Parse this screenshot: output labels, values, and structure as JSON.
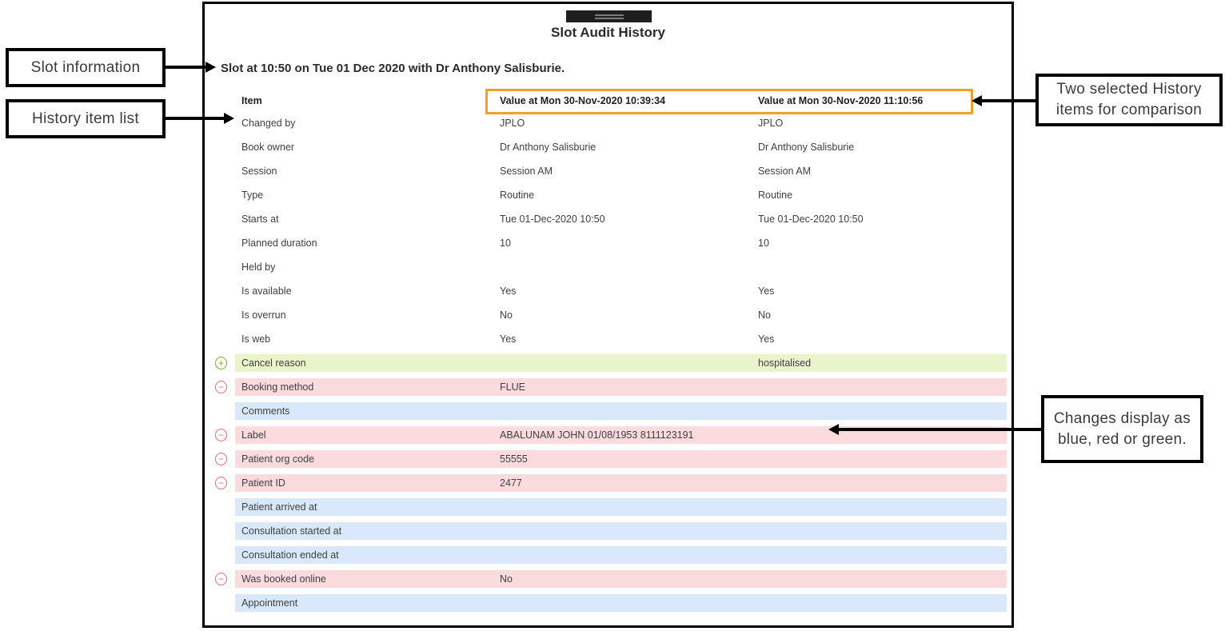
{
  "panel": {
    "title": "Slot Audit History",
    "subtitle": "Slot at 10:50 on Tue 01 Dec 2020 with Dr Anthony Salisburie."
  },
  "table": {
    "columns": [
      "Item",
      "Value at Mon 30-Nov-2020 10:39:34",
      "Value at Mon 30-Nov-2020 11:10:56"
    ],
    "rows": [
      {
        "item": "Changed by",
        "v1": "JPLO",
        "v2": "JPLO",
        "status": "none"
      },
      {
        "item": "Book owner",
        "v1": "Dr Anthony Salisburie",
        "v2": "Dr Anthony Salisburie",
        "status": "none"
      },
      {
        "item": "Session",
        "v1": "Session AM",
        "v2": "Session AM",
        "status": "none"
      },
      {
        "item": "Type",
        "v1": "Routine",
        "v2": "Routine",
        "status": "none"
      },
      {
        "item": "Starts at",
        "v1": "Tue 01-Dec-2020 10:50",
        "v2": "Tue 01-Dec-2020 10:50",
        "status": "none"
      },
      {
        "item": "Planned duration",
        "v1": "10",
        "v2": "10",
        "status": "none"
      },
      {
        "item": "Held by",
        "v1": "",
        "v2": "",
        "status": "none"
      },
      {
        "item": "Is available",
        "v1": "Yes",
        "v2": "Yes",
        "status": "none"
      },
      {
        "item": "Is overrun",
        "v1": "No",
        "v2": "No",
        "status": "none"
      },
      {
        "item": "Is web",
        "v1": "Yes",
        "v2": "Yes",
        "status": "none"
      },
      {
        "item": "Cancel reason",
        "v1": "",
        "v2": "hospitalised",
        "status": "added"
      },
      {
        "item": "Booking method",
        "v1": "FLUE",
        "v2": "",
        "status": "removed"
      },
      {
        "item": "Comments",
        "v1": "",
        "v2": "",
        "status": "changed"
      },
      {
        "item": "Label",
        "v1": "ABALUNAM JOHN 01/08/1953 8111123191",
        "v2": "",
        "status": "removed"
      },
      {
        "item": "Patient org code",
        "v1": "55555",
        "v2": "",
        "status": "removed"
      },
      {
        "item": "Patient ID",
        "v1": "2477",
        "v2": "",
        "status": "removed"
      },
      {
        "item": "Patient arrived at",
        "v1": "",
        "v2": "",
        "status": "changed"
      },
      {
        "item": "Consultation started at",
        "v1": "",
        "v2": "",
        "status": "changed"
      },
      {
        "item": "Consultation ended at",
        "v1": "",
        "v2": "",
        "status": "changed"
      },
      {
        "item": "Was booked online",
        "v1": "No",
        "v2": "",
        "status": "removed"
      },
      {
        "item": "Appointment",
        "v1": "",
        "v2": "",
        "status": "changed"
      }
    ]
  },
  "callouts": {
    "slot_info": "Slot information",
    "history_list": "History item list",
    "comparison": "Two selected History items for comparison",
    "changes": "Changes display as blue, red or green."
  },
  "colors": {
    "added_bg": "#e9f4ca",
    "removed_bg": "#fbdbde",
    "changed_bg": "#d9e9fb",
    "added_icon": "#74b626",
    "removed_icon": "#e4686d",
    "highlight_border": "#efa228"
  },
  "icons": {
    "added": "plus-circle-icon",
    "removed": "minus-circle-icon"
  }
}
